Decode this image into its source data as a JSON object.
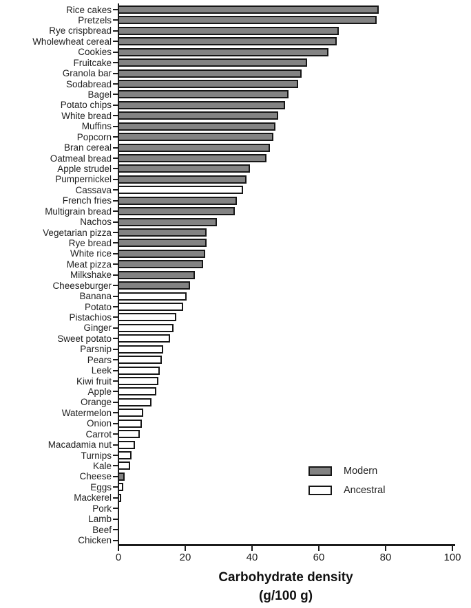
{
  "chart_data": {
    "type": "bar",
    "orientation": "horizontal",
    "xlabel_line1": "Carbohydrate density",
    "xlabel_line2": "(g/100 g)",
    "xlim": [
      0,
      100
    ],
    "xticks": [
      0,
      20,
      40,
      60,
      80,
      100
    ],
    "grid": false,
    "legend_position": "inside-bottom-right",
    "legend": [
      {
        "label": "Modern",
        "color": "#838383"
      },
      {
        "label": "Ancestral",
        "color": "#ffffff"
      }
    ],
    "items": [
      {
        "label": "Rice cakes",
        "value": 77.5,
        "group": "Modern"
      },
      {
        "label": "Pretzels",
        "value": 77,
        "group": "Modern"
      },
      {
        "label": "Rye crispbread",
        "value": 65.5,
        "group": "Modern"
      },
      {
        "label": "Wholewheat cereal",
        "value": 65,
        "group": "Modern"
      },
      {
        "label": "Cookies",
        "value": 62.5,
        "group": "Modern"
      },
      {
        "label": "Fruitcake",
        "value": 56,
        "group": "Modern"
      },
      {
        "label": "Granola bar",
        "value": 54.5,
        "group": "Modern"
      },
      {
        "label": "Sodabread",
        "value": 53.5,
        "group": "Modern"
      },
      {
        "label": "Bagel",
        "value": 50.5,
        "group": "Modern"
      },
      {
        "label": "Potato chips",
        "value": 49.5,
        "group": "Modern"
      },
      {
        "label": "White bread",
        "value": 47.5,
        "group": "Modern"
      },
      {
        "label": "Muffins",
        "value": 46.5,
        "group": "Modern"
      },
      {
        "label": "Popcorn",
        "value": 46,
        "group": "Modern"
      },
      {
        "label": "Bran cereal",
        "value": 45,
        "group": "Modern"
      },
      {
        "label": "Oatmeal bread",
        "value": 44,
        "group": "Modern"
      },
      {
        "label": "Apple strudel",
        "value": 39,
        "group": "Modern"
      },
      {
        "label": "Pumpernickel",
        "value": 38,
        "group": "Modern"
      },
      {
        "label": "Cassava",
        "value": 37,
        "group": "Ancestral"
      },
      {
        "label": "French fries",
        "value": 35,
        "group": "Modern"
      },
      {
        "label": "Multigrain bread",
        "value": 34.5,
        "group": "Modern"
      },
      {
        "label": "Nachos",
        "value": 29,
        "group": "Modern"
      },
      {
        "label": "Vegetarian pizza",
        "value": 26,
        "group": "Modern"
      },
      {
        "label": "Rye bread",
        "value": 26,
        "group": "Modern"
      },
      {
        "label": "White rice",
        "value": 25.5,
        "group": "Modern"
      },
      {
        "label": "Meat pizza",
        "value": 25,
        "group": "Modern"
      },
      {
        "label": "Milkshake",
        "value": 22.5,
        "group": "Modern"
      },
      {
        "label": "Cheeseburger",
        "value": 21,
        "group": "Modern"
      },
      {
        "label": "Banana",
        "value": 20,
        "group": "Ancestral"
      },
      {
        "label": "Potato",
        "value": 19,
        "group": "Ancestral"
      },
      {
        "label": "Pistachios",
        "value": 17,
        "group": "Ancestral"
      },
      {
        "label": "Ginger",
        "value": 16,
        "group": "Ancestral"
      },
      {
        "label": "Sweet potato",
        "value": 15,
        "group": "Ancestral"
      },
      {
        "label": "Parsnip",
        "value": 13,
        "group": "Ancestral"
      },
      {
        "label": "Pears",
        "value": 12.5,
        "group": "Ancestral"
      },
      {
        "label": "Leek",
        "value": 12,
        "group": "Ancestral"
      },
      {
        "label": "Kiwi fruit",
        "value": 11.5,
        "group": "Ancestral"
      },
      {
        "label": "Apple",
        "value": 11,
        "group": "Ancestral"
      },
      {
        "label": "Orange",
        "value": 9.5,
        "group": "Ancestral"
      },
      {
        "label": "Watermelon",
        "value": 7,
        "group": "Ancestral"
      },
      {
        "label": "Onion",
        "value": 6.5,
        "group": "Ancestral"
      },
      {
        "label": "Carrot",
        "value": 6,
        "group": "Ancestral"
      },
      {
        "label": "Macadamia nut",
        "value": 4.5,
        "group": "Ancestral"
      },
      {
        "label": "Turnips",
        "value": 3.5,
        "group": "Ancestral"
      },
      {
        "label": "Kale",
        "value": 3,
        "group": "Ancestral"
      },
      {
        "label": "Cheese",
        "value": 1.5,
        "group": "Modern"
      },
      {
        "label": "Eggs",
        "value": 1,
        "group": "Ancestral"
      },
      {
        "label": "Mackerel",
        "value": 0.5,
        "group": "Ancestral"
      },
      {
        "label": "Pork",
        "value": 0,
        "group": "Ancestral"
      },
      {
        "label": "Lamb",
        "value": 0,
        "group": "Ancestral"
      },
      {
        "label": "Beef",
        "value": 0,
        "group": "Ancestral"
      },
      {
        "label": "Chicken",
        "value": 0,
        "group": "Ancestral"
      }
    ]
  }
}
